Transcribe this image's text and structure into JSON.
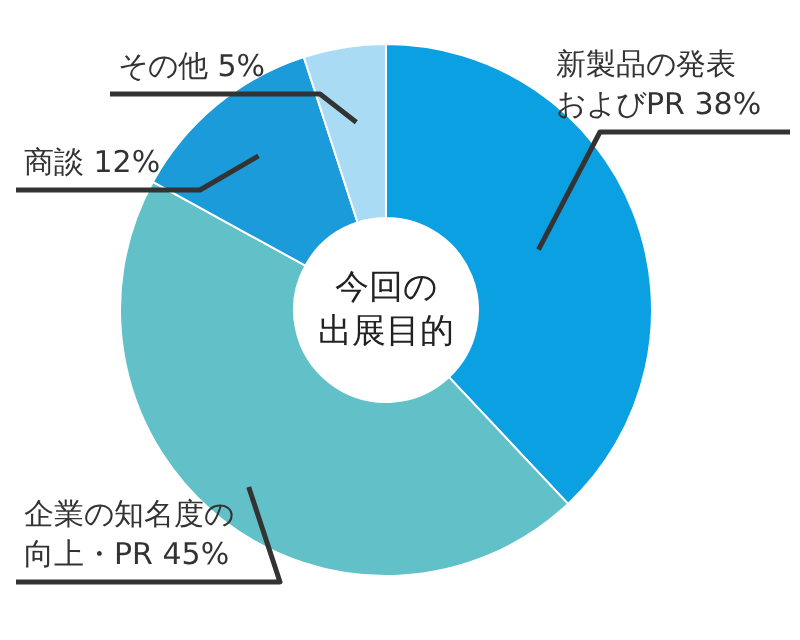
{
  "chart_data": {
    "type": "donut",
    "title": "今回の出展目的",
    "categories": [
      "新製品の発表およびPR",
      "企業の知名度の向上・PR",
      "商談",
      "その他"
    ],
    "values": [
      38,
      45,
      12,
      5
    ],
    "colors": [
      "#0aa0e2",
      "#62c1c8",
      "#1b9bd9",
      "#a9dcf4"
    ],
    "value_labels": [
      "38%",
      "45%",
      "12%",
      "5%"
    ]
  }
}
